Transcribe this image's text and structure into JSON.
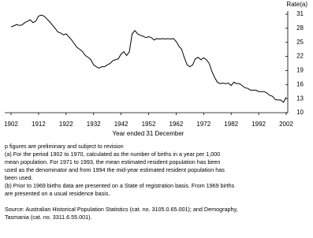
{
  "chart_data": {
    "type": "line",
    "y_axis_label": "Rate(a)",
    "x_axis_label": "Year ended 31 December",
    "x": [
      1902,
      1903,
      1904,
      1905,
      1906,
      1907,
      1908,
      1909,
      1910,
      1911,
      1912,
      1913,
      1914,
      1915,
      1916,
      1917,
      1918,
      1919,
      1920,
      1921,
      1922,
      1923,
      1924,
      1925,
      1926,
      1927,
      1928,
      1929,
      1930,
      1931,
      1932,
      1933,
      1934,
      1935,
      1936,
      1937,
      1938,
      1939,
      1940,
      1941,
      1942,
      1943,
      1944,
      1945,
      1946,
      1947,
      1948,
      1949,
      1950,
      1951,
      1952,
      1953,
      1954,
      1955,
      1956,
      1957,
      1958,
      1959,
      1960,
      1961,
      1962,
      1963,
      1964,
      1965,
      1966,
      1967,
      1968,
      1969,
      1970,
      1971,
      1972,
      1973,
      1974,
      1975,
      1976,
      1977,
      1978,
      1979,
      1980,
      1981,
      1982,
      1983,
      1984,
      1985,
      1986,
      1987,
      1988,
      1989,
      1990,
      1991,
      1992,
      1993,
      1994,
      1995,
      1996,
      1997,
      1998,
      1999,
      2000,
      2001,
      2002
    ],
    "series": [
      {
        "color": "#000000",
        "values": [
          28.3,
          28.5,
          28.8,
          28.6,
          28.7,
          29.2,
          29.5,
          29.8,
          29.2,
          29.5,
          30.6,
          30.8,
          30.6,
          30.0,
          29.4,
          28.7,
          28.0,
          27.2,
          27.0,
          26.6,
          26.8,
          26.2,
          25.5,
          24.7,
          23.9,
          23.5,
          23.0,
          22.2,
          21.8,
          21.3,
          20.2,
          19.8,
          19.5,
          19.8,
          19.8,
          20.2,
          20.5,
          21.1,
          21.3,
          21.5,
          22.5,
          23.0,
          22.2,
          23.0,
          26.8,
          27.5,
          26.8,
          26.5,
          26.3,
          26.0,
          26.2,
          26.0,
          25.5,
          25.8,
          25.7,
          25.8,
          25.7,
          25.8,
          25.7,
          25.8,
          25.2,
          24.2,
          23.5,
          21.7,
          20.2,
          19.8,
          20.2,
          21.5,
          21.8,
          21.3,
          21.7,
          21.3,
          20.5,
          18.8,
          17.5,
          16.5,
          16.2,
          16.3,
          16.2,
          16.3,
          15.8,
          16.5,
          16.2,
          16.2,
          15.8,
          15.3,
          15.2,
          14.8,
          14.8,
          14.8,
          14.5,
          14.5,
          14.5,
          14.2,
          13.7,
          13.5,
          12.8,
          12.7,
          12.7,
          12.2,
          13.3
        ]
      }
    ],
    "xlim": [
      1902,
      2002
    ],
    "xticks": [
      1902,
      1912,
      1922,
      1932,
      1942,
      1952,
      1962,
      1972,
      1982,
      1992,
      2002
    ],
    "ylim": [
      10,
      31
    ],
    "yticks": [
      10,
      13,
      16,
      19,
      22,
      25,
      28,
      31
    ],
    "y_axis_side": "right",
    "grid": false
  },
  "notes": [
    "p figures are preliminary and subject to revision",
    "(a) For the period 1902 to 1970, calculated as the number of births in a year per 1,000",
    "mean population. For 1971 to 1993, the mean estimated resident population has been",
    "used as the denominator and from 1994 the mid-year estimated resident population has",
    "been used.",
    "(b) Prior to 1969 births data are presented on a State of registration basis. From 1969 births",
    "are presented on a usual residence basis."
  ],
  "source": [
    "Source: Australian Historical Population Statistics (cat. no. 3105.0.65.001); and Demography,",
    "Tasmania (cat. no. 3311.6.55.001)."
  ]
}
